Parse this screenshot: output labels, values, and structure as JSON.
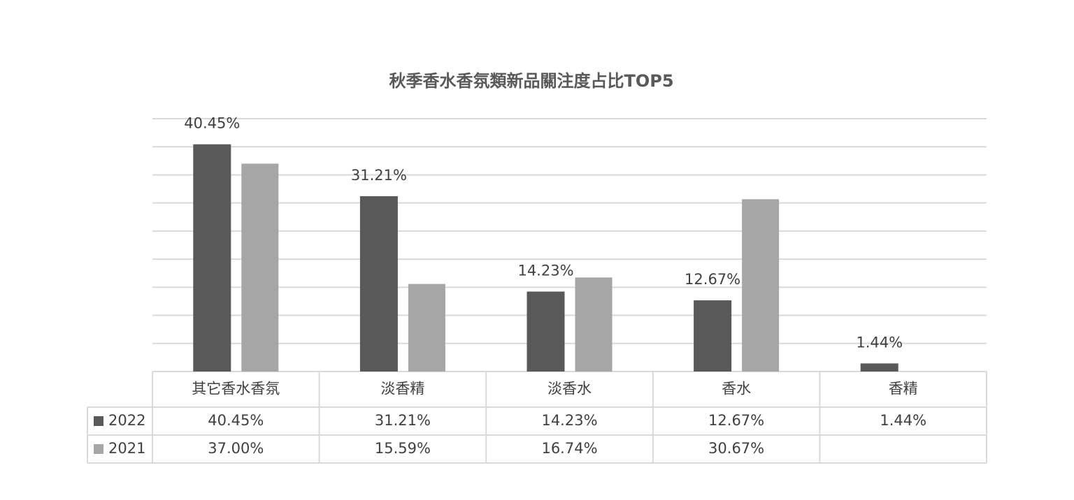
{
  "chart_data": {
    "type": "bar",
    "title": "秋季香水香氛類新品關注度占比TOP5",
    "categories": [
      "其它香水香氛",
      "淡香精",
      "淡香水",
      "香水",
      "香精"
    ],
    "series": [
      {
        "name": "2022",
        "color": "#595959",
        "values": [
          40.45,
          31.21,
          14.23,
          12.67,
          1.44
        ],
        "value_labels": [
          "40.45%",
          "31.21%",
          "14.23%",
          "12.67%",
          "1.44%"
        ]
      },
      {
        "name": "2021",
        "color": "#a6a6a6",
        "values": [
          37.0,
          15.59,
          16.74,
          30.67,
          null
        ],
        "value_labels": [
          "37.00%",
          "15.59%",
          "16.74%",
          "30.67%",
          null
        ]
      }
    ],
    "ylim": [
      0,
      45
    ],
    "yticks": [
      0,
      5,
      10,
      15,
      20,
      25,
      30,
      35,
      40,
      45
    ],
    "grid": true
  }
}
